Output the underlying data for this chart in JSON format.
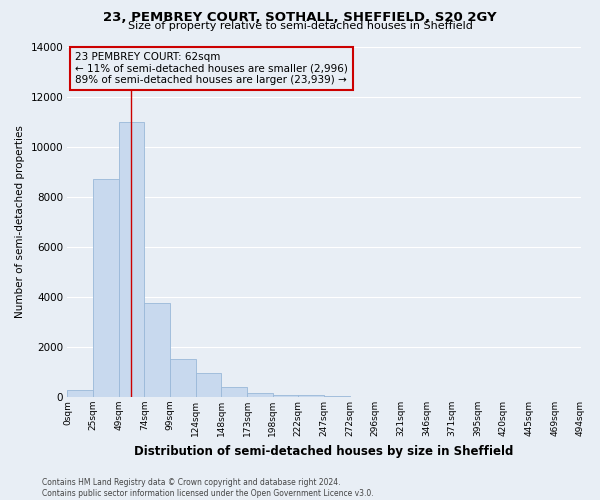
{
  "title": "23, PEMBREY COURT, SOTHALL, SHEFFIELD, S20 2GY",
  "subtitle": "Size of property relative to semi-detached houses in Sheffield",
  "xlabel": "Distribution of semi-detached houses by size in Sheffield",
  "ylabel": "Number of semi-detached properties",
  "bin_labels": [
    "0sqm",
    "25sqm",
    "49sqm",
    "74sqm",
    "99sqm",
    "124sqm",
    "148sqm",
    "173sqm",
    "198sqm",
    "222sqm",
    "247sqm",
    "272sqm",
    "296sqm",
    "321sqm",
    "346sqm",
    "371sqm",
    "395sqm",
    "420sqm",
    "445sqm",
    "469sqm",
    "494sqm"
  ],
  "bar_values": [
    300,
    8700,
    11000,
    3750,
    1500,
    950,
    400,
    170,
    100,
    80,
    60,
    0,
    0,
    0,
    0,
    0,
    0,
    0,
    0,
    0
  ],
  "bar_color": "#c8d9ee",
  "bar_edge_color": "#9ab8d8",
  "property_line_x": 62,
  "property_line_color": "#cc0000",
  "annotation_line1": "23 PEMBREY COURT: 62sqm",
  "annotation_line2": "← 11% of semi-detached houses are smaller (2,996)",
  "annotation_line3": "89% of semi-detached houses are larger (23,939) →",
  "annotation_box_color": "#cc0000",
  "ylim": [
    0,
    14000
  ],
  "yticks": [
    0,
    2000,
    4000,
    6000,
    8000,
    10000,
    12000,
    14000
  ],
  "footer_line1": "Contains HM Land Registry data © Crown copyright and database right 2024.",
  "footer_line2": "Contains public sector information licensed under the Open Government Licence v3.0.",
  "background_color": "#e8eef5",
  "grid_color": "#ffffff"
}
